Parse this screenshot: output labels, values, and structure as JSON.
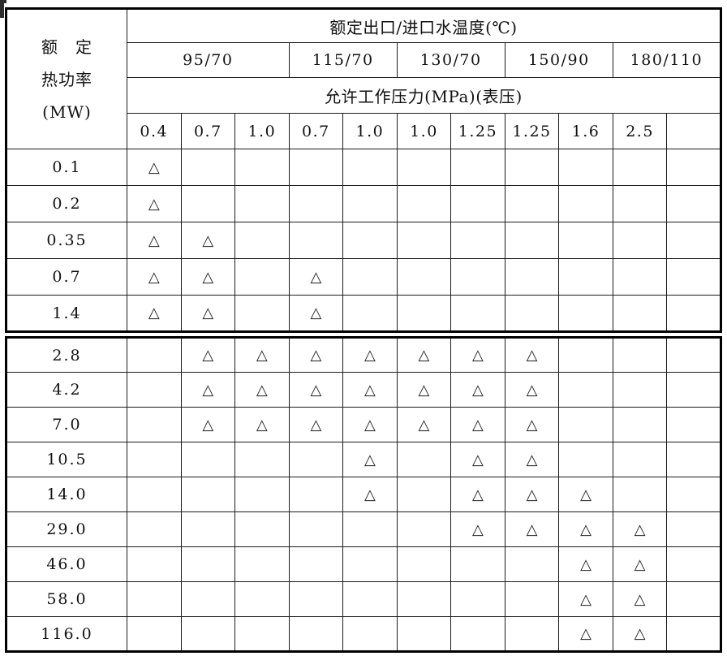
{
  "page": {
    "background": "#ffffff",
    "border_color": "#000000",
    "mark_color": "#222222"
  },
  "table": {
    "power_header_lines": [
      "额　定",
      "热功率",
      "(MW)"
    ],
    "temp_header": "额定出口/进口水温度(℃)",
    "pressure_header": "允许工作压力(MPa)(表压)",
    "temp_groups": [
      {
        "label": "95/70",
        "span": 3
      },
      {
        "label": "115/70",
        "span": 2
      },
      {
        "label": "130/70",
        "span": 2
      },
      {
        "label": "150/90",
        "span": 2
      },
      {
        "label": "180/110",
        "span": 2
      }
    ],
    "pressures": [
      "0.4",
      "0.7",
      "1.0",
      "0.7",
      "1.0",
      "1.0",
      "1.25",
      "1.25",
      "1.6",
      "2.5",
      ""
    ],
    "mark": "△",
    "sections": [
      {
        "rows": [
          {
            "power": "0.1",
            "marks": [
              1
            ]
          },
          {
            "power": "0.2",
            "marks": [
              1
            ]
          },
          {
            "power": "0.35",
            "marks": [
              1,
              2
            ]
          },
          {
            "power": "0.7",
            "marks": [
              1,
              2,
              4
            ]
          },
          {
            "power": "1.4",
            "marks": [
              1,
              2,
              4
            ]
          }
        ]
      },
      {
        "rows": [
          {
            "power": "2.8",
            "marks": [
              2,
              3,
              4,
              5,
              6,
              7,
              8
            ]
          },
          {
            "power": "4.2",
            "marks": [
              2,
              3,
              4,
              5,
              6,
              7,
              8
            ]
          },
          {
            "power": "7.0",
            "marks": [
              2,
              3,
              4,
              5,
              6,
              7,
              8
            ]
          },
          {
            "power": "10.5",
            "marks": [
              5,
              7,
              8
            ]
          },
          {
            "power": "14.0",
            "marks": [
              5,
              7,
              8,
              9
            ]
          },
          {
            "power": "29.0",
            "marks": [
              7,
              8,
              9,
              10
            ]
          },
          {
            "power": "46.0",
            "marks": [
              9,
              10
            ]
          },
          {
            "power": "58.0",
            "marks": [
              9,
              10
            ]
          },
          {
            "power": "116.0",
            "marks": [
              9,
              10
            ]
          }
        ]
      }
    ]
  }
}
